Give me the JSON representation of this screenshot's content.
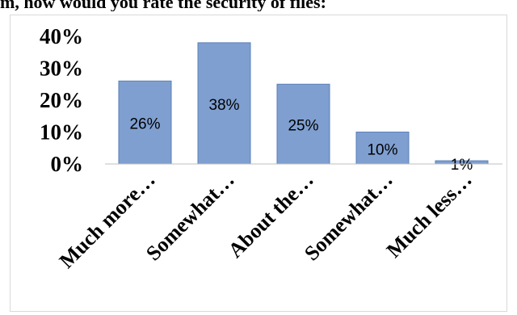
{
  "title": "m, how would you rate the security of files:",
  "chart_data": {
    "type": "bar",
    "title": "",
    "xlabel": "",
    "ylabel": "",
    "ylim": [
      0,
      40
    ],
    "yticks": [
      "0%",
      "10%",
      "20%",
      "30%",
      "40%"
    ],
    "categories": [
      "Much more…",
      "Somewhat…",
      "About the…",
      "Somewhat…",
      "Much less…"
    ],
    "values": [
      26,
      38,
      25,
      10,
      1
    ],
    "data_labels": [
      "26%",
      "38%",
      "25%",
      "10%",
      "1%"
    ],
    "bar_color": "#7f9fd0",
    "bar_edge_color": "#5b7fb8",
    "grid": false,
    "legend": "none"
  }
}
